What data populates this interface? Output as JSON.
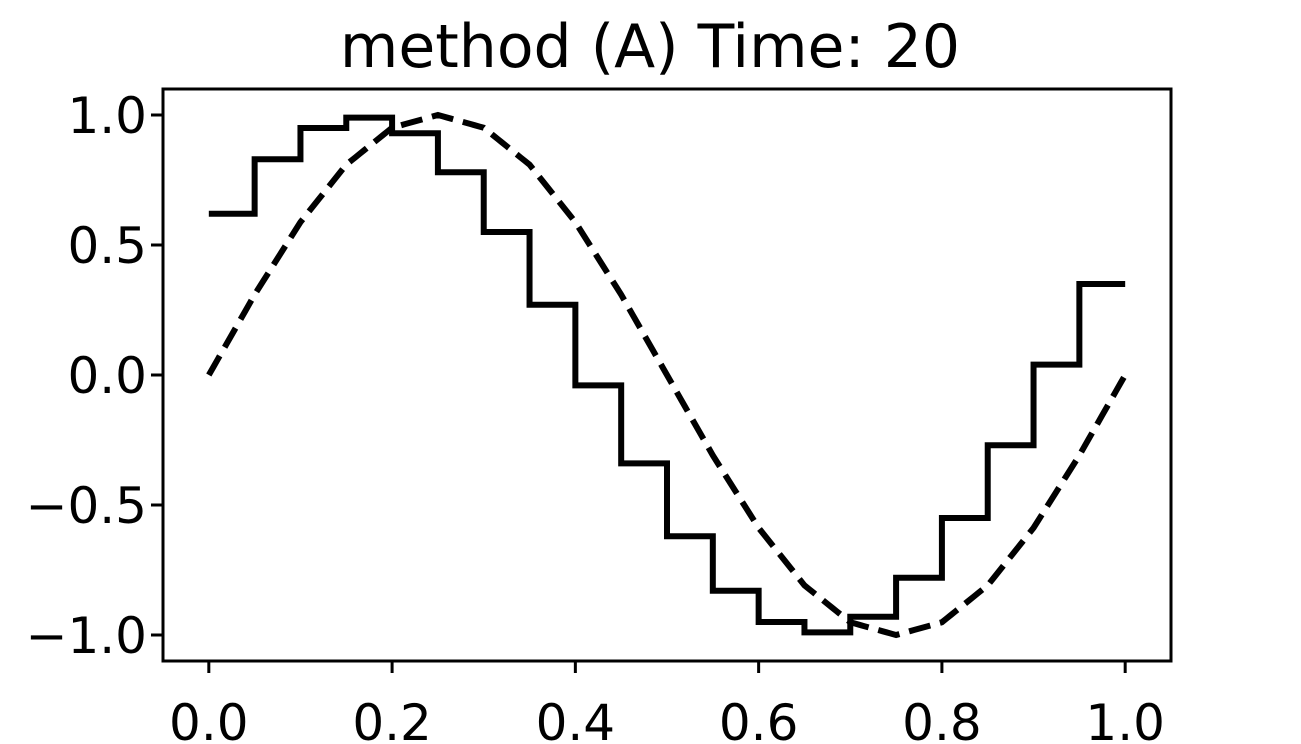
{
  "chart_data": {
    "type": "line",
    "title": "method (A)   Time: 20",
    "xlabel": "",
    "ylabel": "",
    "xlim": [
      -0.05,
      1.05
    ],
    "ylim": [
      -1.1,
      1.1
    ],
    "xticks": [
      0.0,
      0.2,
      0.4,
      0.6,
      0.8,
      1.0
    ],
    "xtick_labels": [
      "0.0",
      "0.2",
      "0.4",
      "0.6",
      "0.8",
      "1.0"
    ],
    "yticks": [
      1.0,
      0.5,
      0.0,
      -0.5,
      -1.0
    ],
    "ytick_labels": [
      "1.0",
      "0.5",
      "0.0",
      "−0.5",
      "−1.0"
    ],
    "grid": false,
    "series": [
      {
        "style": "solid-step",
        "color": "#000000",
        "x": [
          0.0,
          0.05,
          0.1,
          0.15,
          0.2,
          0.25,
          0.3,
          0.35,
          0.4,
          0.45,
          0.5,
          0.55,
          0.6,
          0.65,
          0.7,
          0.75,
          0.8,
          0.85,
          0.9,
          0.95,
          1.0
        ],
        "values": [
          0.62,
          0.83,
          0.95,
          0.99,
          0.93,
          0.78,
          0.55,
          0.27,
          -0.04,
          -0.34,
          -0.62,
          -0.83,
          -0.95,
          -0.99,
          -0.93,
          -0.78,
          -0.55,
          -0.27,
          0.04,
          0.35,
          0.35
        ]
      },
      {
        "style": "dashed",
        "color": "#000000",
        "x": [
          0.0,
          0.05,
          0.1,
          0.15,
          0.2,
          0.25,
          0.3,
          0.35,
          0.4,
          0.45,
          0.5,
          0.55,
          0.6,
          0.65,
          0.7,
          0.75,
          0.8,
          0.85,
          0.9,
          0.95,
          1.0
        ],
        "values": [
          0.0,
          0.309,
          0.588,
          0.809,
          0.951,
          1.0,
          0.951,
          0.809,
          0.588,
          0.309,
          0.0,
          -0.309,
          -0.588,
          -0.809,
          -0.951,
          -1.0,
          -0.951,
          -0.809,
          -0.588,
          -0.309,
          0.0
        ]
      }
    ]
  }
}
